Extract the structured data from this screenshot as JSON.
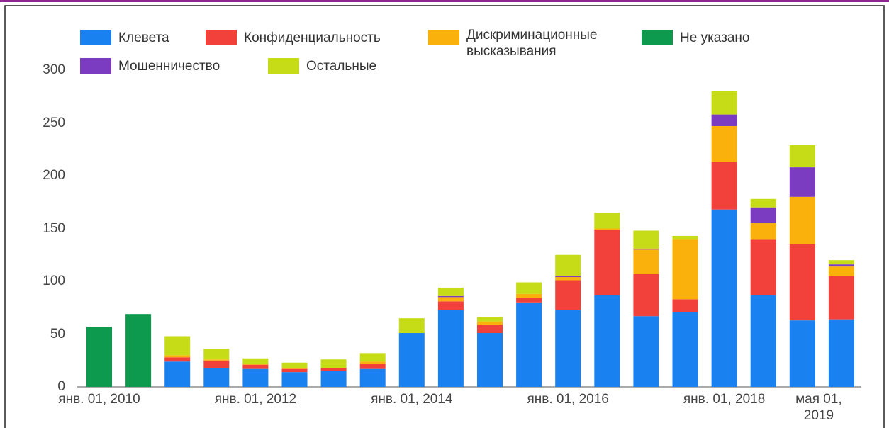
{
  "chart_data": {
    "type": "stacked_bar",
    "categories": [
      "янв. 01, 2010",
      null,
      null,
      null,
      "янв. 01, 2012",
      null,
      null,
      null,
      "янв. 01, 2014",
      null,
      null,
      null,
      "янв. 01, 2016",
      null,
      null,
      null,
      "янв. 01, 2018",
      null,
      null,
      "мая 01, 2019"
    ],
    "series": [
      {
        "name": "Клевета",
        "color": "#1a82f0",
        "values": [
          0,
          0,
          24,
          18,
          17,
          14,
          15,
          17,
          51,
          73,
          51,
          80,
          73,
          87,
          67,
          71,
          168,
          87,
          63,
          64
        ]
      },
      {
        "name": "Конфиденциальность",
        "color": "#f2413a",
        "values": [
          0,
          0,
          4,
          7,
          4,
          3,
          3,
          5,
          0,
          8,
          8,
          4,
          28,
          62,
          40,
          12,
          45,
          53,
          72,
          41
        ]
      },
      {
        "name": "Дискриминационные высказывания",
        "color": "#fbb10b",
        "values": [
          0,
          0,
          2,
          1,
          1,
          1,
          0,
          2,
          0,
          4,
          3,
          4,
          3,
          1,
          23,
          57,
          34,
          15,
          45,
          9
        ]
      },
      {
        "name": "Не указано",
        "color": "#0e9a4e",
        "values": [
          57,
          69,
          0,
          0,
          0,
          0,
          0,
          0,
          0,
          0,
          0,
          0,
          0,
          0,
          0,
          0,
          0,
          0,
          0,
          0
        ]
      },
      {
        "name": "Мошенничество",
        "color": "#7b3cc2",
        "values": [
          0,
          0,
          0,
          0,
          0,
          0,
          0,
          0,
          0,
          1,
          0,
          0,
          1,
          0,
          1,
          0,
          11,
          15,
          28,
          2
        ]
      },
      {
        "name": "Остальные",
        "color": "#c6dc16",
        "values": [
          0,
          0,
          18,
          10,
          5,
          5,
          8,
          8,
          14,
          8,
          4,
          11,
          20,
          15,
          17,
          3,
          22,
          8,
          21,
          4
        ]
      }
    ],
    "ylim": [
      0,
      300
    ],
    "yticks": [
      0,
      50,
      100,
      150,
      200,
      250,
      300
    ]
  }
}
